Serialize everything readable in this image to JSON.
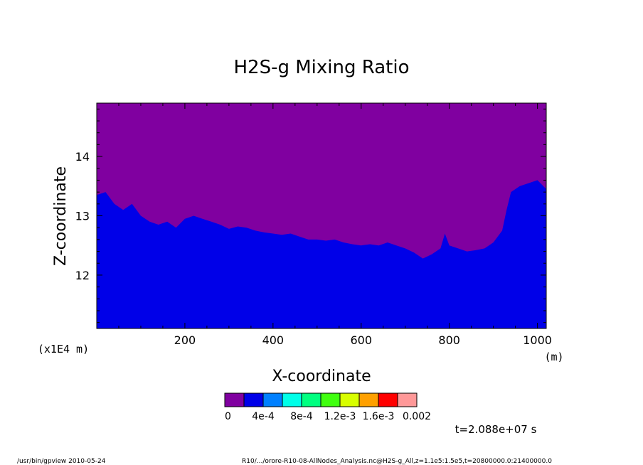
{
  "chart_data": {
    "type": "heatmap",
    "title": "H2S-g Mixing Ratio",
    "xlabel": "X-coordinate",
    "ylabel": "Z-coordinate",
    "x_unit": "(m)",
    "y_unit": "(x1E4 m)",
    "xlim": [
      0,
      1020
    ],
    "ylim": [
      11.1,
      14.9
    ],
    "x_ticks": [
      "200",
      "400",
      "600",
      "800",
      "1000"
    ],
    "y_ticks": [
      "12",
      "13",
      "14"
    ],
    "colorbar": {
      "colors": [
        "#8000a0",
        "#0000e8",
        "#0080ff",
        "#00ffe8",
        "#00ff80",
        "#40ff10",
        "#d8ff00",
        "#ffa000",
        "#ff0000",
        "#ff9898"
      ],
      "labels": [
        "0",
        "4e-4",
        "8e-4",
        "1.2e-3",
        "1.6e-3",
        "0.002"
      ]
    },
    "regions": [
      {
        "name": "upper",
        "color": "#8000a0",
        "level": "0"
      },
      {
        "name": "lower",
        "color": "#0000e8",
        "level": "0–2e-4"
      }
    ],
    "boundary": [
      [
        0,
        13.35
      ],
      [
        20,
        13.4
      ],
      [
        40,
        13.2
      ],
      [
        60,
        13.1
      ],
      [
        80,
        13.2
      ],
      [
        100,
        13.0
      ],
      [
        120,
        12.9
      ],
      [
        140,
        12.85
      ],
      [
        160,
        12.9
      ],
      [
        180,
        12.8
      ],
      [
        200,
        12.95
      ],
      [
        220,
        13.0
      ],
      [
        240,
        12.95
      ],
      [
        260,
        12.9
      ],
      [
        280,
        12.85
      ],
      [
        300,
        12.78
      ],
      [
        320,
        12.82
      ],
      [
        340,
        12.8
      ],
      [
        360,
        12.75
      ],
      [
        380,
        12.72
      ],
      [
        400,
        12.7
      ],
      [
        420,
        12.68
      ],
      [
        440,
        12.7
      ],
      [
        460,
        12.65
      ],
      [
        480,
        12.6
      ],
      [
        500,
        12.6
      ],
      [
        520,
        12.58
      ],
      [
        540,
        12.6
      ],
      [
        560,
        12.55
      ],
      [
        580,
        12.52
      ],
      [
        600,
        12.5
      ],
      [
        620,
        12.52
      ],
      [
        640,
        12.5
      ],
      [
        660,
        12.55
      ],
      [
        680,
        12.5
      ],
      [
        700,
        12.45
      ],
      [
        720,
        12.38
      ],
      [
        740,
        12.28
      ],
      [
        760,
        12.35
      ],
      [
        780,
        12.45
      ],
      [
        790,
        12.7
      ],
      [
        800,
        12.5
      ],
      [
        820,
        12.45
      ],
      [
        840,
        12.4
      ],
      [
        860,
        12.42
      ],
      [
        880,
        12.45
      ],
      [
        900,
        12.55
      ],
      [
        920,
        12.75
      ],
      [
        930,
        13.1
      ],
      [
        940,
        13.4
      ],
      [
        960,
        13.5
      ],
      [
        980,
        13.55
      ],
      [
        1000,
        13.6
      ],
      [
        1020,
        13.45
      ]
    ],
    "annotation": "t=2.088e+07 s"
  },
  "footer": {
    "left": "/usr/bin/gpview  2010-05-24",
    "right": "R10/.../orore-R10-08-AllNodes_Analysis.nc@H2S-g_All,z=1.1e5:1.5e5,t=20800000.0:21400000.0"
  }
}
